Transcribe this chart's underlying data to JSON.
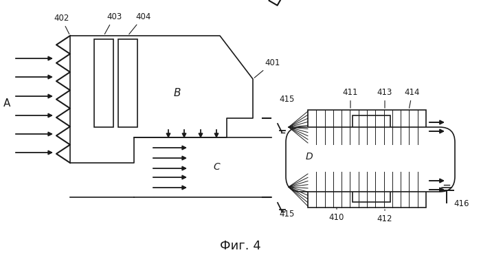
{
  "title": "Фиг. 4",
  "title_fontsize": 13,
  "bg_color": "#ffffff",
  "line_color": "#1a1a1a",
  "label_A": "A",
  "label_B": "B",
  "label_C": "C",
  "label_D": "D"
}
